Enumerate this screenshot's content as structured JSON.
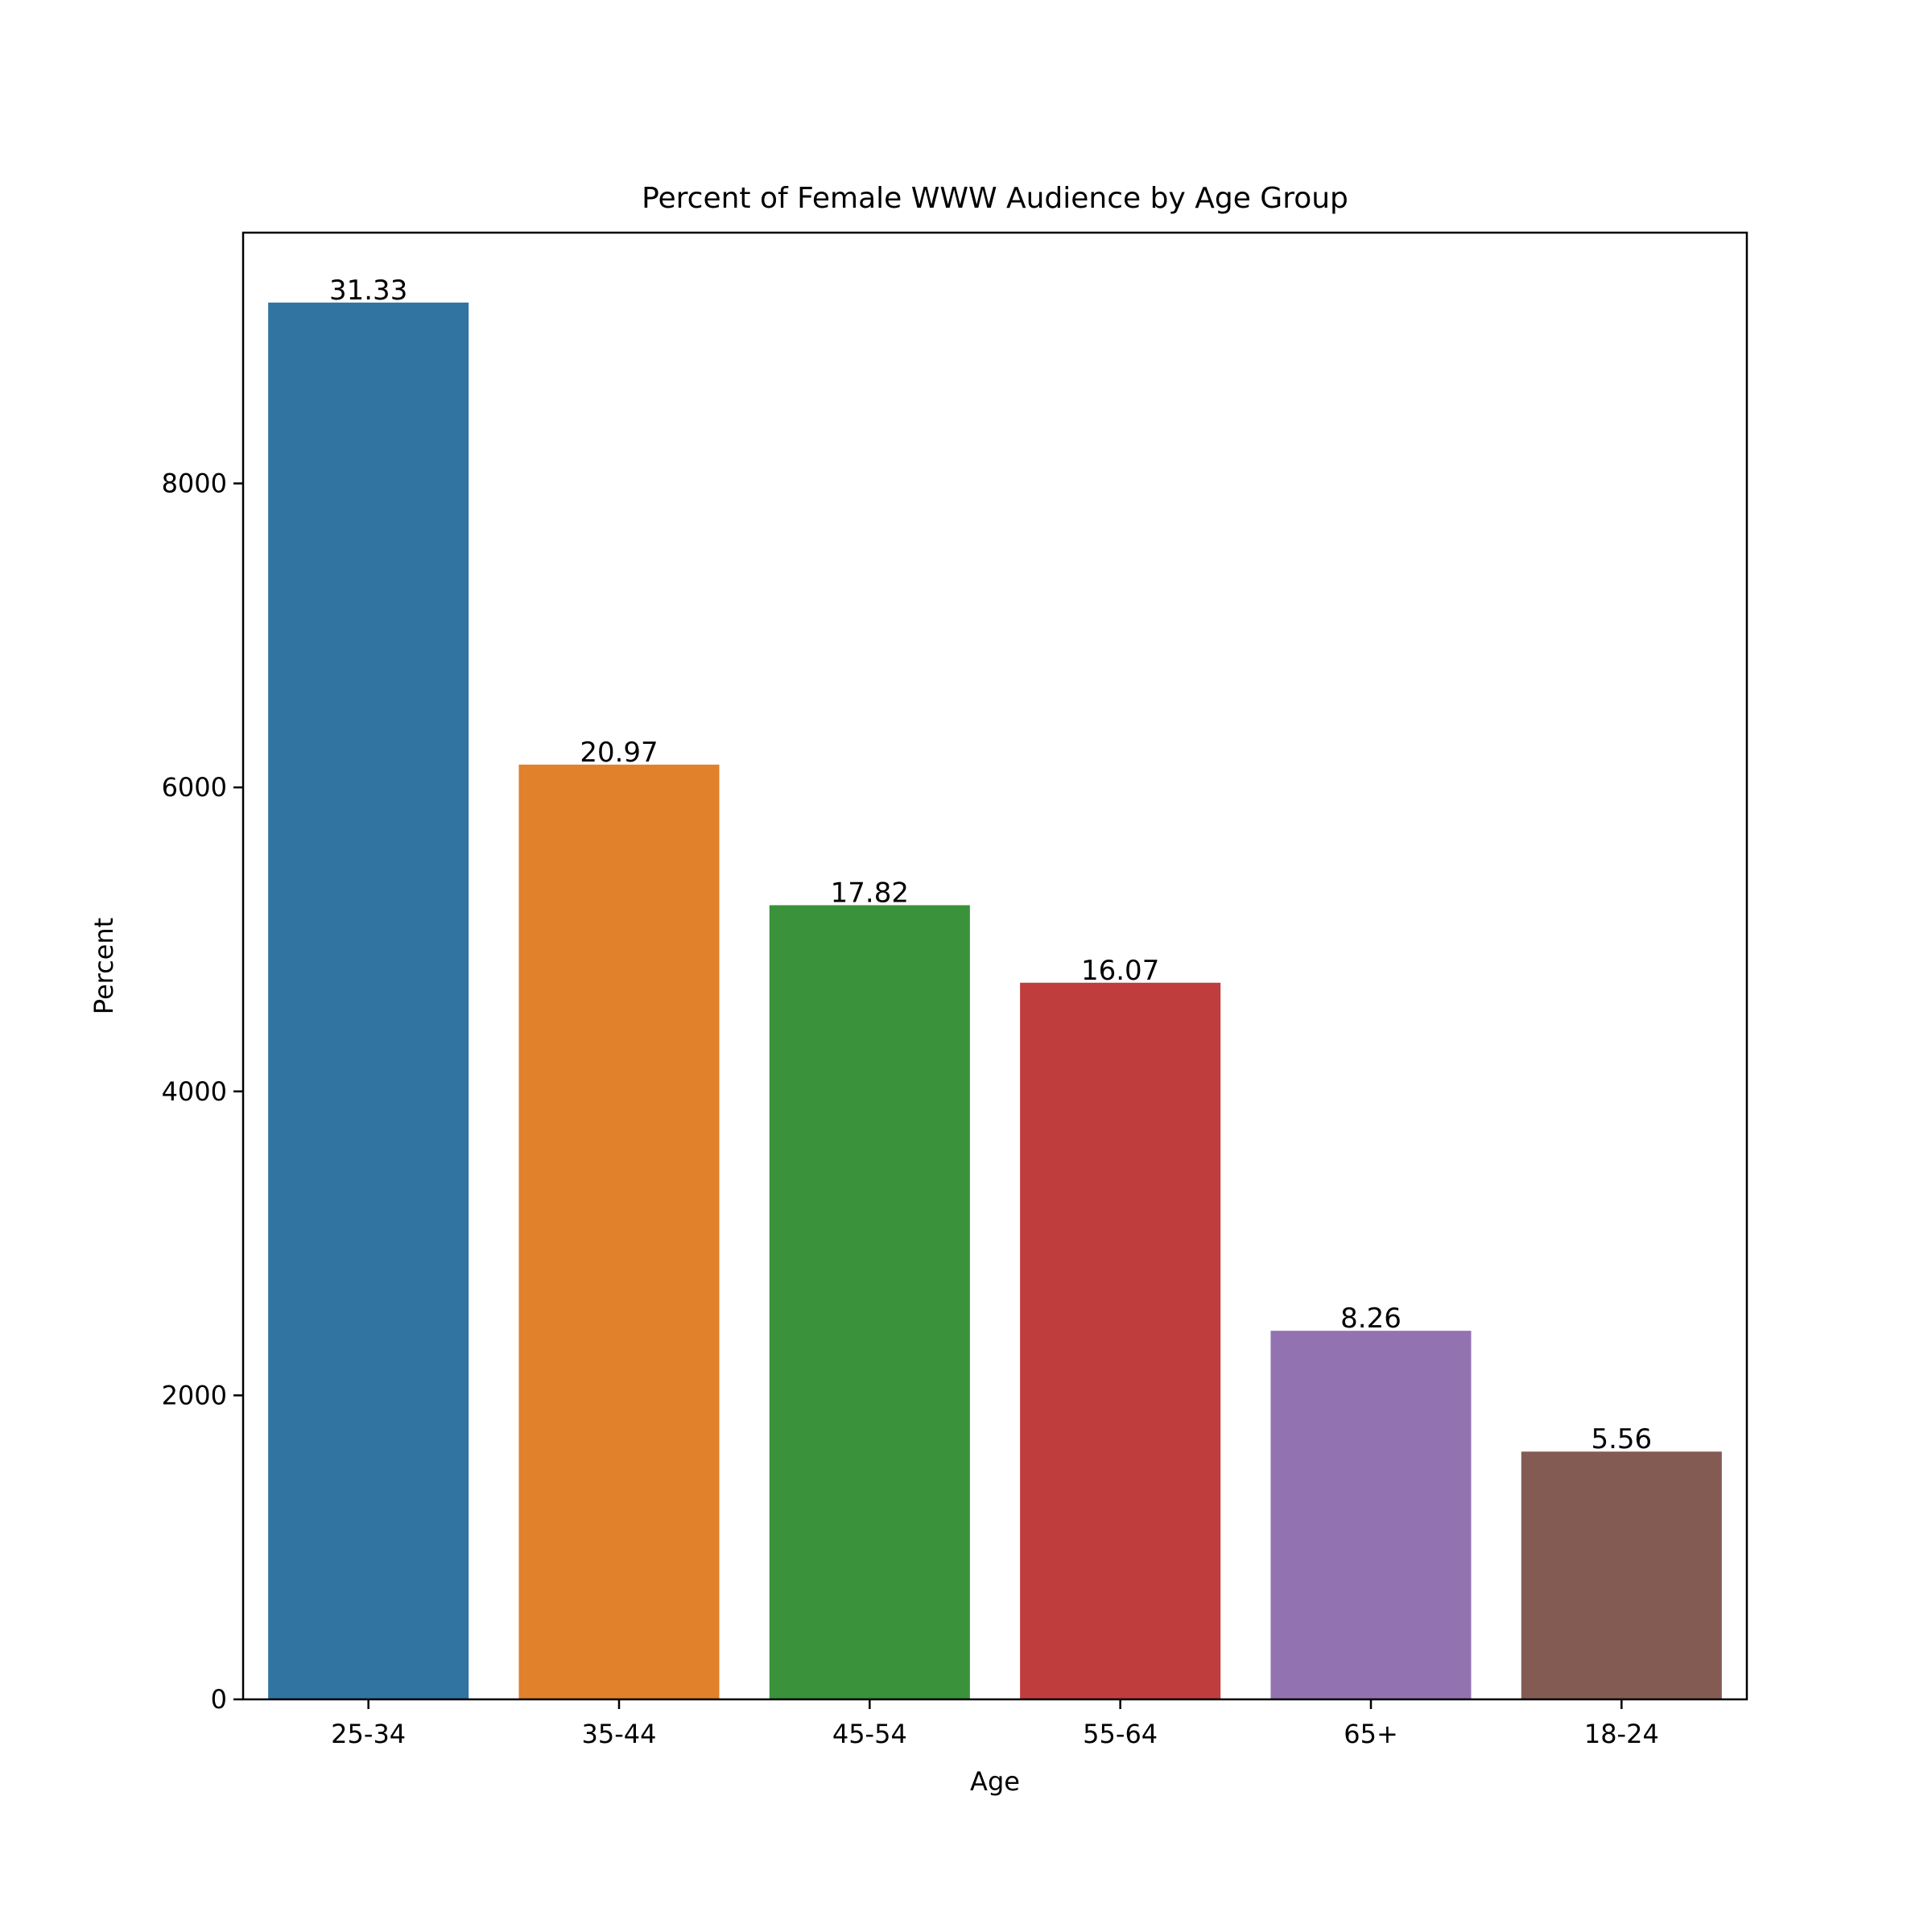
{
  "chart_data": {
    "type": "bar",
    "title": "Percent of Female WWW Audience by Age Group",
    "xlabel": "Age",
    "ylabel": "Percent",
    "categories": [
      "25-34",
      "35-44",
      "45-54",
      "55-64",
      "65+",
      "18-24"
    ],
    "values": [
      9190,
      6150,
      5225,
      4715,
      2425,
      1630
    ],
    "data_labels": [
      "31.33",
      "20.97",
      "17.82",
      "16.07",
      "8.26",
      "5.56"
    ],
    "colors": [
      "#3274a1",
      "#e1812c",
      "#3a923a",
      "#c03d3e",
      "#9372b2",
      "#845b53"
    ],
    "ylim": [
      0,
      9650
    ],
    "yticks": [
      0,
      2000,
      4000,
      6000,
      8000
    ],
    "grid": false,
    "legend": "none"
  }
}
